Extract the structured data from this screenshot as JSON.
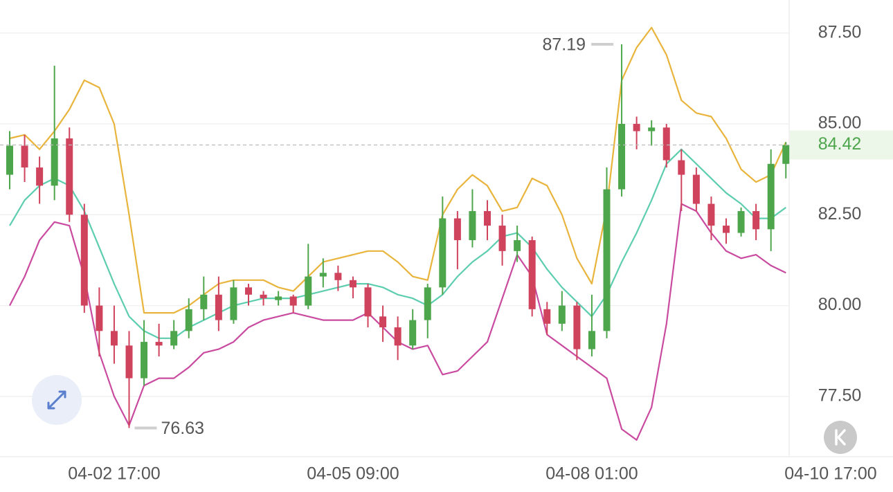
{
  "chart_data": {
    "type": "candlestick",
    "categories": [
      null,
      null,
      null,
      null,
      null,
      null,
      null,
      "04-02 17:00",
      null,
      null,
      null,
      null,
      null,
      null,
      null,
      null,
      null,
      null,
      null,
      null,
      null,
      null,
      null,
      "04-05 09:00",
      null,
      null,
      null,
      null,
      null,
      null,
      null,
      null,
      null,
      null,
      null,
      null,
      null,
      null,
      null,
      "04-08 01:00",
      null,
      null,
      null,
      null,
      null,
      null,
      null,
      null,
      null,
      null,
      null,
      null,
      null,
      null,
      null,
      "04-10 17:00"
    ],
    "open": [
      83.6,
      84.4,
      83.8,
      83.3,
      84.6,
      82.5,
      80.0,
      79.3,
      78.9,
      78.0,
      79.0,
      78.9,
      79.3,
      79.9,
      80.3,
      79.6,
      80.5,
      80.3,
      80.15,
      80.25,
      80.0,
      80.8,
      80.9,
      80.7,
      80.5,
      79.7,
      79.4,
      78.9,
      79.6,
      80.5,
      82.4,
      81.8,
      82.6,
      82.2,
      81.5,
      81.8,
      79.9,
      79.5,
      80.0,
      78.8,
      79.3,
      83.2,
      85.0,
      84.8,
      84.9,
      84.0,
      83.6,
      82.8,
      82.2,
      82.0,
      82.6,
      82.1,
      83.9,
      null,
      null,
      null
    ],
    "high": [
      84.8,
      84.7,
      84.1,
      86.6,
      84.9,
      82.8,
      80.5,
      80.0,
      79.3,
      79.6,
      79.5,
      79.6,
      80.2,
      80.8,
      80.8,
      80.7,
      80.6,
      80.4,
      80.4,
      80.3,
      81.7,
      81.3,
      81.1,
      80.8,
      80.6,
      80.0,
      79.7,
      79.9,
      80.6,
      83.0,
      82.6,
      83.2,
      82.9,
      82.5,
      82.2,
      81.9,
      80.1,
      80.4,
      80.1,
      80.3,
      83.8,
      87.19,
      85.2,
      85.1,
      85.0,
      84.3,
      83.8,
      83.0,
      82.4,
      82.7,
      82.8,
      84.3,
      84.5,
      null,
      null,
      null
    ],
    "low": [
      83.2,
      83.4,
      82.8,
      82.9,
      82.3,
      79.8,
      78.6,
      78.4,
      76.63,
      77.8,
      78.6,
      78.8,
      79.1,
      79.6,
      79.3,
      79.5,
      80.0,
      80.0,
      80.0,
      79.8,
      79.9,
      80.5,
      80.4,
      80.2,
      79.4,
      79.0,
      78.5,
      78.8,
      79.1,
      80.3,
      81.0,
      81.6,
      81.8,
      81.1,
      81.2,
      79.7,
      79.2,
      79.3,
      78.5,
      78.6,
      79.1,
      83.0,
      84.3,
      84.4,
      83.8,
      82.6,
      82.6,
      81.8,
      81.7,
      81.9,
      81.8,
      81.5,
      83.5,
      null,
      null,
      null
    ],
    "close": [
      84.4,
      83.8,
      83.3,
      84.6,
      82.5,
      80.0,
      79.3,
      78.9,
      78.0,
      79.0,
      78.9,
      79.3,
      79.9,
      80.3,
      79.6,
      80.5,
      80.3,
      80.2,
      80.25,
      80.0,
      80.8,
      80.9,
      80.7,
      80.5,
      79.7,
      79.4,
      78.9,
      79.6,
      80.5,
      82.4,
      81.8,
      82.6,
      82.2,
      81.5,
      81.8,
      79.9,
      79.5,
      80.0,
      78.8,
      79.3,
      83.2,
      85.0,
      84.8,
      84.9,
      84.0,
      83.6,
      82.8,
      82.2,
      82.0,
      82.6,
      82.1,
      83.9,
      84.42,
      null,
      null,
      null
    ],
    "up_color": "#4ea64c",
    "down_color": "#d0435d",
    "bands": [
      {
        "color": "#e9b43c",
        "values": [
          84.6,
          84.7,
          84.3,
          84.8,
          85.4,
          86.2,
          86.0,
          85.0,
          82.5,
          79.8,
          79.8,
          79.8,
          80.0,
          80.3,
          80.6,
          80.7,
          80.7,
          80.7,
          80.5,
          80.4,
          80.8,
          81.2,
          81.3,
          81.4,
          81.5,
          81.5,
          81.2,
          80.8,
          80.7,
          82.5,
          83.2,
          83.6,
          83.3,
          82.6,
          82.7,
          83.5,
          83.3,
          82.5,
          81.3,
          80.6,
          82.7,
          86.2,
          87.1,
          87.65,
          86.9,
          85.65,
          85.3,
          85.2,
          84.6,
          83.75,
          83.4,
          83.6,
          84.5,
          null,
          null,
          null
        ]
      },
      {
        "color": "#5ccdae",
        "values": [
          82.2,
          82.9,
          83.3,
          83.5,
          83.3,
          82.6,
          81.6,
          80.6,
          79.7,
          79.3,
          79.1,
          79.1,
          79.4,
          79.6,
          79.8,
          80.0,
          80.1,
          80.2,
          80.2,
          80.2,
          80.3,
          80.4,
          80.5,
          80.6,
          80.6,
          80.5,
          80.3,
          80.2,
          80.0,
          80.3,
          80.8,
          81.2,
          81.5,
          81.9,
          82.0,
          81.6,
          81.0,
          80.5,
          80.1,
          79.7,
          80.3,
          81.2,
          82.0,
          82.9,
          83.9,
          84.3,
          83.9,
          83.5,
          83.1,
          82.8,
          82.4,
          82.4,
          82.7,
          null,
          null,
          null
        ]
      },
      {
        "color": "#c94a9f",
        "values": [
          80.0,
          80.8,
          81.8,
          82.3,
          82.2,
          80.8,
          78.7,
          77.5,
          76.7,
          77.8,
          78.0,
          78.0,
          78.3,
          78.7,
          78.8,
          79.0,
          79.4,
          79.6,
          79.7,
          79.8,
          79.7,
          79.6,
          79.6,
          79.6,
          79.8,
          79.4,
          79.0,
          78.8,
          78.9,
          78.1,
          78.2,
          78.6,
          79.0,
          80.2,
          81.4,
          80.8,
          79.2,
          78.9,
          78.6,
          78.3,
          78.0,
          76.6,
          76.3,
          77.2,
          79.5,
          82.8,
          82.6,
          82.0,
          81.5,
          81.3,
          81.4,
          81.1,
          80.9,
          null,
          null,
          null
        ]
      }
    ],
    "ylim": [
      75.84,
      88.41
    ],
    "yticks": [
      {
        "value": 77.5,
        "label": "77.50"
      },
      {
        "value": 80,
        "label": "80.00"
      },
      {
        "value": 82.5,
        "label": "82.50"
      },
      {
        "value": 85,
        "label": "85.00"
      },
      {
        "value": 87.5,
        "label": "87.50"
      }
    ],
    "grid": true,
    "high_label": 87.19,
    "low_label": 76.63,
    "last_price": 84.42,
    "last_price_color": "#4ea64c"
  }
}
